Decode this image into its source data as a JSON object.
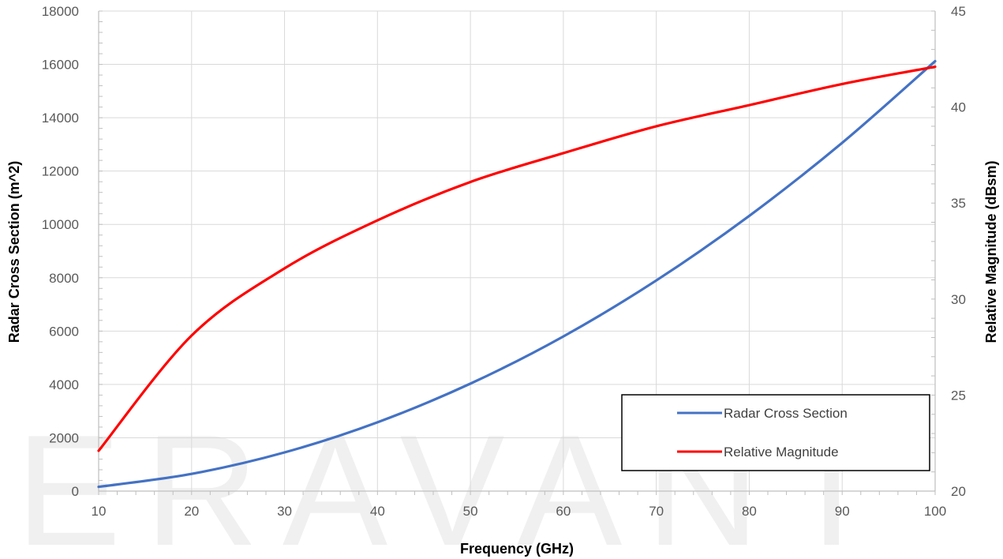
{
  "watermark": "ERAVANT",
  "chart_data": {
    "type": "line",
    "title": "",
    "xlabel": "Frequency (GHz)",
    "ylabel_left": "Radar Cross Section (m^2)",
    "ylabel_right": "Relative Magnitude (dBsm)",
    "xlim": [
      10,
      100
    ],
    "ylim_left": [
      0,
      18000
    ],
    "ylim_right": [
      20,
      45
    ],
    "x_ticks": [
      10,
      20,
      30,
      40,
      50,
      60,
      70,
      80,
      90,
      100
    ],
    "y_left_ticks": [
      0,
      2000,
      4000,
      6000,
      8000,
      10000,
      12000,
      14000,
      16000,
      18000
    ],
    "y_right_ticks": [
      20,
      25,
      30,
      35,
      40,
      45
    ],
    "grid": true,
    "legend_position": "bottom-right",
    "series": [
      {
        "name": "Radar Cross Section",
        "axis": "left",
        "color": "#4472C4",
        "x": [
          10,
          20,
          30,
          40,
          50,
          60,
          70,
          80,
          90,
          100
        ],
        "y": [
          160,
          645,
          1450,
          2580,
          4030,
          5800,
          7900,
          10320,
          13060,
          16120
        ]
      },
      {
        "name": "Relative Magnitude",
        "axis": "right",
        "color": "#FF0000",
        "x": [
          10,
          20,
          30,
          40,
          50,
          60,
          70,
          80,
          90,
          100
        ],
        "y": [
          22.1,
          28.1,
          31.6,
          34.1,
          36.1,
          37.6,
          39.0,
          40.1,
          41.2,
          42.1
        ]
      }
    ]
  }
}
